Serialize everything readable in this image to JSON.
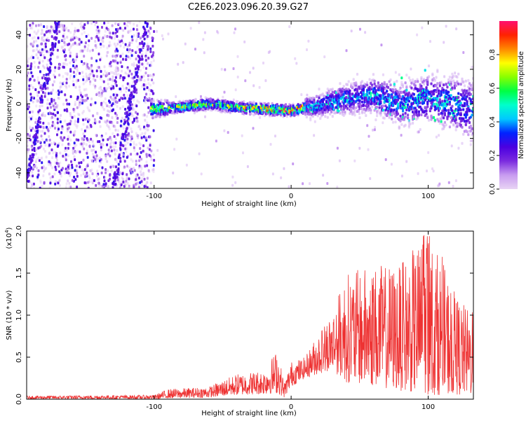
{
  "title": "C2E6.2023.096.20.39.G27",
  "chart_data": [
    {
      "type": "heatmap",
      "xlabel": "Height of straight line (km)",
      "ylabel": "Frequency (Hz)",
      "xlim": [
        -193,
        133
      ],
      "ylim": [
        -49,
        48
      ],
      "x_ticks": [
        -100,
        0,
        100
      ],
      "y_ticks": [
        -40,
        -20,
        0,
        20,
        40
      ],
      "colorbar": {
        "label": "Normalized spectral amplitude",
        "range": [
          0,
          1
        ],
        "ticks": [
          "0.0",
          "0.2",
          "0.4",
          "0.6",
          "0.8"
        ],
        "colors": [
          "#e8d4f4",
          "#c89cf0",
          "#7b2bdf",
          "#4b00e0",
          "#0022ff",
          "#00c8ff",
          "#00ffcc",
          "#00ff44",
          "#88ff00",
          "#ffff00",
          "#ff8800",
          "#ff2200",
          "#ff1070"
        ]
      },
      "ridge": {
        "x": [
          -100,
          -80,
          -60,
          -40,
          -20,
          0,
          10,
          20,
          40,
          60,
          80,
          100,
          120,
          130
        ],
        "y": [
          -3,
          -2,
          0,
          -2,
          -3,
          -4,
          -2,
          -1,
          3,
          5,
          0,
          3,
          0,
          -3
        ]
      },
      "stripes": [
        {
          "x0": -193,
          "y0": -45,
          "x1": -170,
          "y1": 48
        },
        {
          "x0": -130,
          "y0": -49,
          "x1": -105,
          "y1": 48
        }
      ]
    },
    {
      "type": "line",
      "xlabel": "Height of straight line (km)",
      "ylabel": "SNR (10 * v/v)",
      "scale_note": "(x10",
      "scale_exp": "4",
      "scale_close": ")",
      "xlim": [
        -193,
        133
      ],
      "ylim": [
        0,
        2.0
      ],
      "x_ticks": [
        -100,
        0,
        100
      ],
      "y_ticks": [
        "0.0",
        "0.5",
        "1.0",
        "1.5",
        "2.0"
      ],
      "color": "#ee3333",
      "envelope": {
        "x": [
          -193,
          -100,
          -90,
          -60,
          -40,
          -20,
          -10,
          -5,
          0,
          10,
          20,
          30,
          40,
          60,
          80,
          100,
          120,
          133
        ],
        "low": [
          0.0,
          0.0,
          0.01,
          0.02,
          0.05,
          0.06,
          0.07,
          0.02,
          0.15,
          0.25,
          0.3,
          0.35,
          0.2,
          0.15,
          0.1,
          0.05,
          0.05,
          0.05
        ],
        "high": [
          0.04,
          0.05,
          0.12,
          0.15,
          0.3,
          0.35,
          0.6,
          0.2,
          0.45,
          0.5,
          0.8,
          1.05,
          1.5,
          1.6,
          1.6,
          2.0,
          1.25,
          1.0
        ]
      }
    }
  ]
}
